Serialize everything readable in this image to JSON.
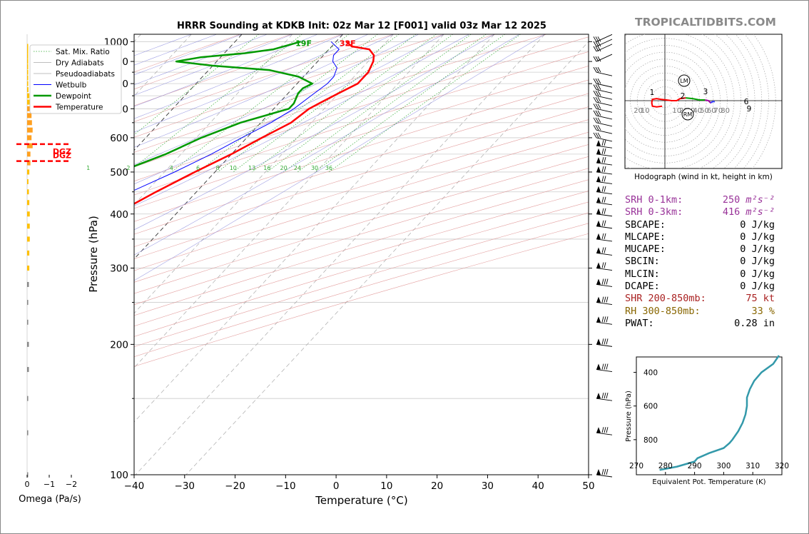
{
  "title": "HRRR Sounding at KDKB Init: 02z Mar 12 [F001] valid 03z Mar 12 2025",
  "logo": "TROPICALTIDBITS.COM",
  "colors": {
    "temperature": "#ff0000",
    "dewpoint": "#009900",
    "wetbulb": "#0000ff",
    "omega": "#ffc000",
    "theta_e": "#3399aa",
    "srh": "#993399",
    "shr": "#aa2222",
    "rh": "#886600",
    "dgz": "#ff0000",
    "dry_adiabat": "#dd8888",
    "moist_adiabat": "#8888dd",
    "mixing_ratio": "#33aa33"
  },
  "chart_data": [
    {
      "type": "line",
      "name": "skew-t",
      "title": "HRRR Sounding at KDKB Init: 02z Mar 12 [F001] valid 03z Mar 12 2025",
      "xlabel": "Temperature (°C)",
      "ylabel": "Pressure (hPa)",
      "xlim": [
        -40,
        50
      ],
      "ylim": [
        1040,
        100
      ],
      "y_scale": "log",
      "x_ticks": [
        "−40",
        "−30",
        "−20",
        "−10",
        "0",
        "10",
        "20",
        "30",
        "40",
        "50"
      ],
      "y_ticks": [
        "100",
        "200",
        "300",
        "400",
        "500",
        "600",
        "700",
        "800",
        "900",
        "1000"
      ],
      "legend_position": "upper-left",
      "legend": [
        "Sat. Mix. Ratio",
        "Dry Adiabats",
        "Pseudoadiabats",
        "Wetbulb",
        "Dewpoint",
        "Temperature"
      ],
      "mixing_ratio_labels": [
        "1",
        "2",
        "4",
        "6",
        "8",
        "10",
        "13",
        "16",
        "20",
        "24",
        "30",
        "36"
      ],
      "annotations": {
        "surface_dewpoint": "19F",
        "surface_temperature": "32F"
      },
      "series": [
        {
          "name": "Temperature",
          "points": [
            [
              1000,
              2
            ],
            [
              975,
              4
            ],
            [
              960,
              8
            ],
            [
              930,
              10
            ],
            [
              900,
              11
            ],
            [
              850,
              12
            ],
            [
              800,
              12
            ],
            [
              760,
              10
            ],
            [
              720,
              8
            ],
            [
              700,
              7
            ],
            [
              650,
              6
            ],
            [
              600,
              3
            ],
            [
              550,
              0
            ],
            [
              500,
              -4
            ],
            [
              450,
              -8
            ],
            [
              400,
              -12
            ],
            [
              350,
              -15
            ],
            [
              300,
              -21
            ],
            [
              250,
              -28
            ],
            [
              220,
              -30
            ],
            [
              200,
              -26
            ],
            [
              175,
              -20
            ],
            [
              150,
              -21
            ],
            [
              125,
              -22
            ],
            [
              100,
              -21
            ]
          ]
        },
        {
          "name": "Dewpoint",
          "points": [
            [
              1000,
              -7
            ],
            [
              980,
              -9
            ],
            [
              960,
              -11
            ],
            [
              940,
              -16
            ],
            [
              920,
              -24
            ],
            [
              900,
              -28
            ],
            [
              880,
              -20
            ],
            [
              860,
              -8
            ],
            [
              830,
              -1
            ],
            [
              800,
              3
            ],
            [
              780,
              2
            ],
            [
              760,
              2
            ],
            [
              720,
              3
            ],
            [
              700,
              3
            ],
            [
              650,
              -4
            ],
            [
              600,
              -9
            ],
            [
              550,
              -13
            ],
            [
              500,
              -19
            ],
            [
              450,
              -25
            ],
            [
              400,
              -28
            ],
            [
              380,
              -27
            ],
            [
              350,
              -26
            ],
            [
              320,
              -28
            ],
            [
              300,
              -30
            ],
            [
              280,
              -33
            ],
            [
              250,
              -36
            ],
            [
              220,
              -39
            ],
            [
              200,
              -42
            ],
            [
              175,
              -40
            ],
            [
              150,
              -44
            ],
            [
              125,
              -45
            ],
            [
              100,
              -42
            ]
          ]
        },
        {
          "name": "Wetbulb",
          "points": [
            [
              1000,
              -1
            ],
            [
              960,
              2
            ],
            [
              930,
              2
            ],
            [
              900,
              3
            ],
            [
              870,
              5
            ],
            [
              830,
              6
            ],
            [
              800,
              6
            ],
            [
              750,
              5
            ],
            [
              700,
              4
            ],
            [
              650,
              2
            ],
            [
              600,
              -1
            ],
            [
              550,
              -4
            ],
            [
              500,
              -8
            ],
            [
              450,
              -13
            ],
            [
              400,
              -18
            ],
            [
              350,
              -22
            ]
          ]
        }
      ]
    },
    {
      "type": "bar",
      "name": "omega",
      "xlabel": "Omega (Pa/s)",
      "xlim": [
        0,
        -2
      ],
      "x_ticks": [
        "0",
        "−1",
        "−2"
      ],
      "dgz_label": "DGZ",
      "dgz_levels_hpa": [
        530,
        580
      ],
      "levels_hpa": [
        100,
        125,
        150,
        175,
        200,
        225,
        250,
        275,
        300,
        325,
        350,
        375,
        400,
        425,
        450,
        475,
        500,
        525,
        550,
        575,
        600,
        625,
        650,
        675,
        700,
        725,
        750,
        775,
        800,
        825,
        850,
        875,
        900,
        925,
        950,
        975,
        1000
      ],
      "values": [
        0.02,
        0.05,
        0.05,
        0.08,
        0.08,
        0.05,
        0.05,
        0.08,
        0.1,
        0.1,
        0.12,
        0.12,
        0.12,
        0.1,
        0.08,
        0.06,
        0.1,
        0.15,
        0.15,
        0.25,
        0.2,
        0.25,
        0.22,
        0.2,
        0.15,
        0.12,
        0.1,
        0.06,
        0.05,
        0.04,
        0.02,
        0.02,
        0.01,
        0.01,
        0.01,
        0.01,
        0.0
      ]
    },
    {
      "type": "line",
      "name": "hodograph",
      "caption": "Hodograph (wind in kt, height in km)",
      "ring_labels": [
        "10",
        "20",
        "30",
        "40",
        "50",
        "60",
        "70",
        "80"
      ],
      "neg_ring_labels": [
        "20",
        "10"
      ],
      "height_labels": [
        "1",
        "2",
        "3",
        "6",
        "9"
      ],
      "markers": [
        "LM",
        "RM"
      ],
      "points": [
        [
          -4,
          -8,
          0
        ],
        [
          -12,
          -9,
          0.3
        ],
        [
          -18,
          -8,
          0.5
        ],
        [
          -19,
          -3,
          0.7
        ],
        [
          -18,
          2,
          0.9
        ],
        [
          -12,
          3,
          1.1
        ],
        [
          -6,
          2,
          1.5
        ],
        [
          2,
          1,
          1.8
        ],
        [
          10,
          0,
          2
        ],
        [
          17,
          0,
          2.3
        ],
        [
          22,
          3,
          2.8
        ],
        [
          30,
          4,
          3.2
        ],
        [
          40,
          3,
          4
        ],
        [
          50,
          1,
          5
        ],
        [
          58,
          1,
          6
        ],
        [
          63,
          0,
          7
        ],
        [
          66,
          -3,
          8
        ],
        [
          70,
          -1,
          8.5
        ],
        [
          72,
          -2,
          9
        ]
      ],
      "point_units": "u_kt, v_kt, height_km"
    },
    {
      "type": "line",
      "name": "theta-e",
      "xlabel": "Equivalent Pot. Temperature (K)",
      "ylabel": "Pressure (hPa)",
      "xlim": [
        270,
        320
      ],
      "x_ticks": [
        "270",
        "280",
        "290",
        "300",
        "310",
        "320"
      ],
      "ylim": [
        980,
        300
      ],
      "y_ticks": [
        "400",
        "600",
        "800"
      ],
      "points": [
        [
          980,
          278
        ],
        [
          960,
          284
        ],
        [
          930,
          290
        ],
        [
          910,
          291
        ],
        [
          880,
          295
        ],
        [
          850,
          300
        ],
        [
          820,
          302
        ],
        [
          800,
          303
        ],
        [
          750,
          305
        ],
        [
          700,
          306.5
        ],
        [
          650,
          307.5
        ],
        [
          600,
          308
        ],
        [
          550,
          308
        ],
        [
          500,
          309
        ],
        [
          450,
          310.5
        ],
        [
          400,
          313
        ],
        [
          350,
          317
        ],
        [
          300,
          319
        ]
      ]
    }
  ],
  "params": [
    {
      "label": "SRH 0-1km:",
      "value": "250",
      "unit": "m²s⁻²",
      "color": "#993399"
    },
    {
      "label": "SRH 0-3km:",
      "value": "416",
      "unit": "m²s⁻²",
      "color": "#993399"
    },
    {
      "label": "SBCAPE:",
      "value": "0",
      "unit": "J/kg",
      "color": "#000000"
    },
    {
      "label": "MLCAPE:",
      "value": "0",
      "unit": "J/kg",
      "color": "#000000"
    },
    {
      "label": "MUCAPE:",
      "value": "0",
      "unit": "J/kg",
      "color": "#000000"
    },
    {
      "label": "SBCIN:",
      "value": "0",
      "unit": "J/kg",
      "color": "#000000"
    },
    {
      "label": "MLCIN:",
      "value": "0",
      "unit": "J/kg",
      "color": "#000000"
    },
    {
      "label": "DCAPE:",
      "value": "0",
      "unit": "J/kg",
      "color": "#000000"
    },
    {
      "label": "SHR 200-850mb:",
      "value": "75",
      "unit": "kt",
      "color": "#aa2222"
    },
    {
      "label": "RH 300-850mb:",
      "value": "33",
      "unit": "%",
      "color": "#886600"
    },
    {
      "label": "PWAT:",
      "value": "0.28",
      "unit": "in",
      "color": "#000000"
    }
  ]
}
